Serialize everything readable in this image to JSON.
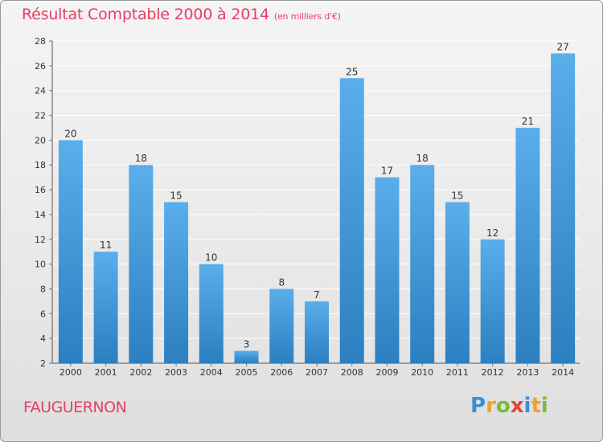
{
  "header": {
    "title": "Résultat Comptable 2000 à 2014",
    "unit_note": "(en milliers d'€)"
  },
  "footer": {
    "location": "FAUGUERNON",
    "brand_letters": [
      {
        "ch": "P",
        "color": "#3b8fd4"
      },
      {
        "ch": "r",
        "color": "#f2a12b"
      },
      {
        "ch": "o",
        "color": "#7dbb3b"
      },
      {
        "ch": "x",
        "color": "#e8413c"
      },
      {
        "ch": "i",
        "color": "#3b8fd4"
      },
      {
        "ch": "t",
        "color": "#f2a12b"
      },
      {
        "ch": "i",
        "color": "#7dbb3b"
      }
    ]
  },
  "colors": {
    "title": "#e83e63",
    "bar_top": "#5aaeea",
    "bar_bottom": "#2c7fc0",
    "grid": "#ffffff",
    "axis": "#555555"
  },
  "chart_data": {
    "type": "bar",
    "categories": [
      "2000",
      "2001",
      "2002",
      "2003",
      "2004",
      "2005",
      "2006",
      "2007",
      "2008",
      "2009",
      "2010",
      "2011",
      "2012",
      "2013",
      "2014"
    ],
    "values": [
      20,
      11,
      18,
      15,
      10,
      3,
      8,
      7,
      25,
      17,
      18,
      15,
      12,
      21,
      27
    ],
    "data_labels": [
      "20",
      "11",
      "18",
      "15",
      "10",
      "3",
      "8",
      "7",
      "25",
      "17",
      "18",
      "15",
      "12",
      "21",
      "27"
    ],
    "ylim": [
      2,
      28
    ],
    "yticks": [
      2,
      4,
      6,
      8,
      10,
      12,
      14,
      16,
      18,
      20,
      22,
      24,
      26,
      28
    ],
    "grid": true,
    "title": "Résultat Comptable 2000 à 2014",
    "xlabel": "",
    "ylabel": ""
  }
}
